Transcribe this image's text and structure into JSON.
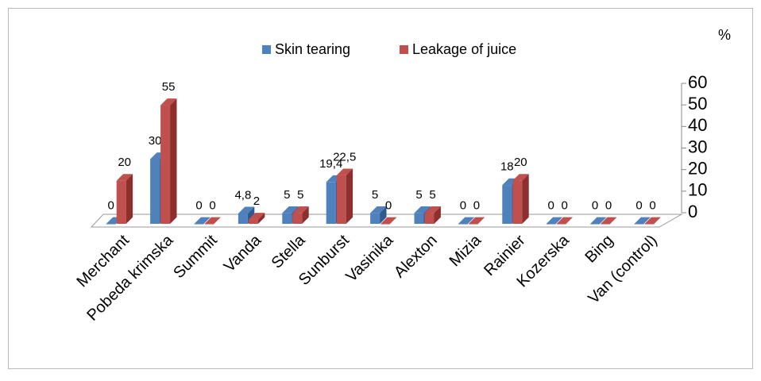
{
  "chart_data": {
    "type": "bar3d",
    "unit_label": "%",
    "categories": [
      "Merchant",
      "Pobeda krimska",
      "Summit",
      "Vanda",
      "Stella",
      "Sunburst",
      "Vasinika",
      "Alexton",
      "Mizia",
      "Rainier",
      "Kozerska",
      "Bing",
      "Van (control)"
    ],
    "series": [
      {
        "name": "Skin tearing",
        "color": "#4f81bd",
        "side_color": "#2f5a8f",
        "values": [
          0,
          30,
          0,
          4.8,
          5,
          19.4,
          5,
          5,
          0,
          18,
          0,
          0,
          0
        ],
        "value_labels": [
          "0",
          "30",
          "0",
          "4,8",
          "5",
          "19,4",
          "5",
          "5",
          "0",
          "18",
          "0",
          "0",
          "0"
        ]
      },
      {
        "name": "Leakage of juice",
        "color": "#c0504d",
        "side_color": "#8c2f2d",
        "values": [
          20,
          55,
          0,
          2,
          5,
          22.5,
          0,
          5,
          0,
          20,
          0,
          0,
          0
        ],
        "value_labels": [
          "20",
          "55",
          "0",
          "2",
          "5",
          "22,5",
          "0",
          "5",
          "0",
          "20",
          "0",
          "0",
          "0"
        ]
      }
    ],
    "ylim": [
      0,
      60
    ],
    "yticks": [
      0,
      10,
      20,
      30,
      40,
      50,
      60
    ],
    "grid": false
  }
}
